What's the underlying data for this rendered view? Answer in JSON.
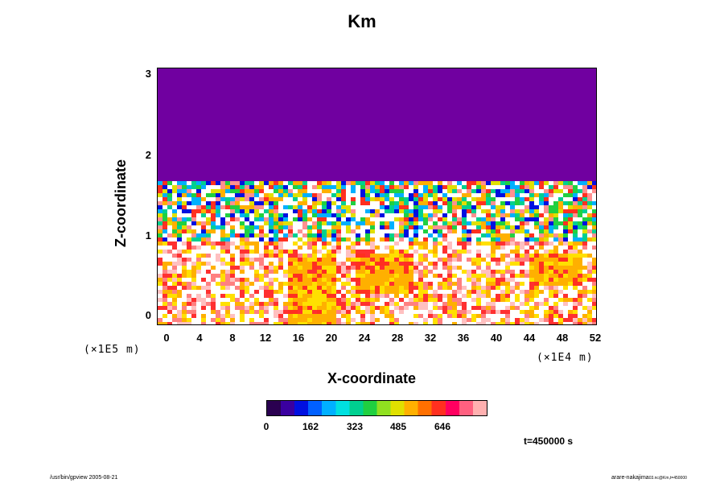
{
  "chart_data": {
    "type": "heatmap",
    "title": "Km",
    "xlabel": "X-coordinate",
    "ylabel": "Z-coordinate",
    "x_scale_note": "(×1E4 m)",
    "y_scale_note": "(×1E5 m)",
    "xlim": [
      -1,
      52.5
    ],
    "ylim": [
      -0.1,
      3.1
    ],
    "x_ticks": [
      "0",
      "4",
      "8",
      "12",
      "16",
      "20",
      "24",
      "28",
      "32",
      "36",
      "40",
      "44",
      "48",
      "52"
    ],
    "y_ticks": [
      "0",
      "1",
      "2",
      "3"
    ],
    "colorbar": {
      "range": [
        0,
        808
      ],
      "ticks": [
        "0",
        "162",
        "323",
        "485",
        "646"
      ],
      "colors": [
        "#2a0050",
        "#3a00a0",
        "#0010e0",
        "#0060ff",
        "#00b0ff",
        "#00e0e0",
        "#00d090",
        "#20d040",
        "#90e020",
        "#e0e000",
        "#ffb000",
        "#ff7000",
        "#ff3020",
        "#ff0060",
        "#ff6080",
        "#ffb0b0"
      ]
    },
    "regions": {
      "upper_layer_value": "uniform low value above z≈1.65E5 m",
      "turbulent_band": "high-variability layer between z≈0.9E5 and 1.65E5 m",
      "lower_layer": "moderate values with plumes below z≈0.9E5 m"
    }
  },
  "annotations": {
    "time": "t=450000 s",
    "footer_left": "/usr/bin/gpview 2005-08-21",
    "footer_right_main": "arare-nakajima",
    "footer_right_small": "03.nc@Km,t=450000"
  }
}
